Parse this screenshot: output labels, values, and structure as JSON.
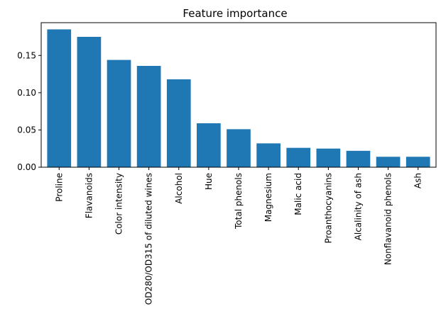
{
  "chart_data": {
    "type": "bar",
    "title": "Feature importance",
    "xlabel": "",
    "ylabel": "",
    "categories": [
      "Proline",
      "Flavanoids",
      "Color intensity",
      "OD280/OD315 of diluted wines",
      "Alcohol",
      "Hue",
      "Total phenols",
      "Magnesium",
      "Malic acid",
      "Proanthocyanins",
      "Alcalinity of ash",
      "Nonflavanoid phenols",
      "Ash"
    ],
    "values": [
      0.185,
      0.175,
      0.144,
      0.136,
      0.118,
      0.059,
      0.051,
      0.032,
      0.026,
      0.025,
      0.022,
      0.014,
      0.014
    ],
    "ylim": [
      0,
      0.194
    ],
    "yticks": [
      0.0,
      0.05,
      0.1,
      0.15
    ],
    "ytick_labels": [
      "0.00",
      "0.05",
      "0.10",
      "0.15"
    ],
    "bar_color": "#1f77b4",
    "grid": false,
    "legend": "none"
  }
}
